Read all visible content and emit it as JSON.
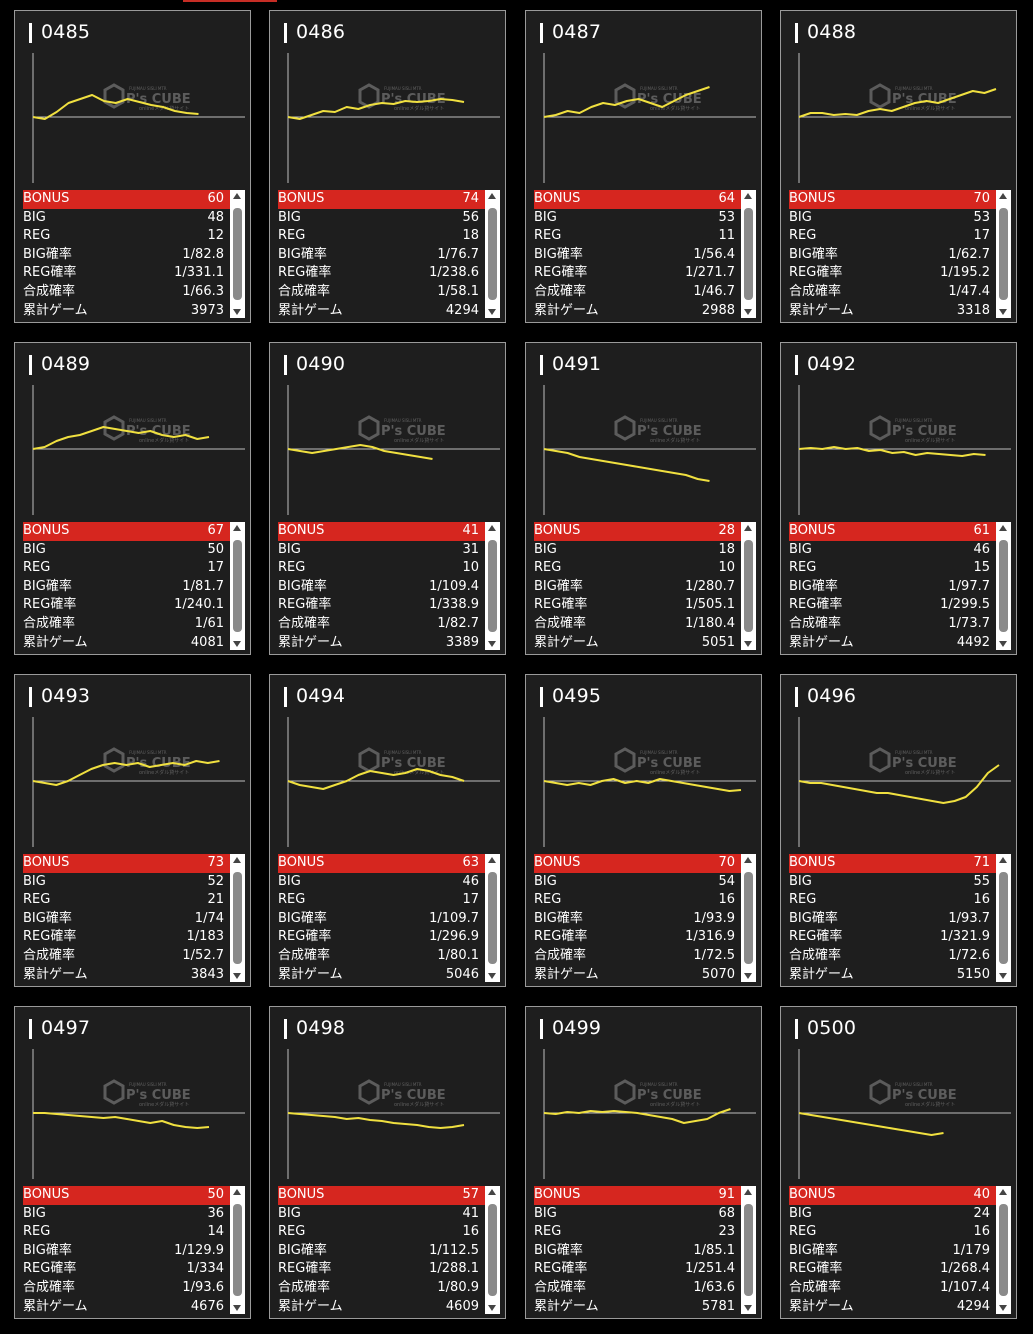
{
  "labels": {
    "bonus": "BONUS",
    "big": "BIG",
    "reg": "REG",
    "big_rate": "BIG確率",
    "reg_rate": "REG確率",
    "total_rate": "合成確率",
    "games": "累計ゲーム"
  },
  "watermark": {
    "brand": "P's CUBE",
    "line1": "FUJIMAU SISLI MTR",
    "line2": "onlineメダル貸サイト"
  },
  "colors": {
    "bonus_bar": "#d6261f",
    "graph_line": "#f0e040",
    "card_bg": "#1e1e1e"
  },
  "machines": [
    {
      "id": "0485",
      "bonus": "60",
      "big": "48",
      "reg": "12",
      "big_rate": "1/82.8",
      "reg_rate": "1/331.1",
      "total_rate": "1/66.3",
      "games": "3973",
      "trend": [
        0,
        -2,
        5,
        14,
        18,
        22,
        16,
        14,
        18,
        15,
        12,
        10,
        6,
        4,
        3
      ]
    },
    {
      "id": "0486",
      "bonus": "74",
      "big": "56",
      "reg": "18",
      "big_rate": "1/76.7",
      "reg_rate": "1/238.6",
      "total_rate": "1/58.1",
      "games": "4294",
      "trend": [
        0,
        -2,
        2,
        6,
        5,
        10,
        8,
        12,
        14,
        13,
        16,
        15,
        16,
        18,
        17,
        15
      ]
    },
    {
      "id": "0487",
      "bonus": "64",
      "big": "53",
      "reg": "11",
      "big_rate": "1/56.4",
      "reg_rate": "1/271.7",
      "total_rate": "1/46.7",
      "games": "2988",
      "trend": [
        0,
        2,
        6,
        4,
        10,
        14,
        12,
        16,
        18,
        14,
        10,
        16,
        22,
        26,
        30
      ]
    },
    {
      "id": "0488",
      "bonus": "70",
      "big": "53",
      "reg": "17",
      "big_rate": "1/62.7",
      "reg_rate": "1/195.2",
      "total_rate": "1/47.4",
      "games": "3318",
      "trend": [
        0,
        4,
        4,
        2,
        3,
        2,
        6,
        8,
        6,
        10,
        14,
        16,
        14,
        18,
        22,
        26,
        24,
        28
      ]
    },
    {
      "id": "0489",
      "bonus": "67",
      "big": "50",
      "reg": "17",
      "big_rate": "1/81.7",
      "reg_rate": "1/240.1",
      "total_rate": "1/61",
      "games": "4081",
      "trend": [
        0,
        2,
        8,
        12,
        14,
        18,
        22,
        20,
        18,
        16,
        18,
        14,
        12,
        14,
        10,
        12
      ]
    },
    {
      "id": "0490",
      "bonus": "41",
      "big": "31",
      "reg": "10",
      "big_rate": "1/109.4",
      "reg_rate": "1/338.9",
      "total_rate": "1/82.7",
      "games": "3389",
      "trend": [
        0,
        -2,
        -4,
        -2,
        0,
        2,
        4,
        2,
        -2,
        -4,
        -6,
        -8,
        -10
      ]
    },
    {
      "id": "0491",
      "bonus": "28",
      "big": "18",
      "reg": "10",
      "big_rate": "1/280.7",
      "reg_rate": "1/505.1",
      "total_rate": "1/180.4",
      "games": "5051",
      "trend": [
        0,
        -2,
        -4,
        -8,
        -10,
        -12,
        -14,
        -16,
        -18,
        -20,
        -22,
        -24,
        -26,
        -30,
        -32
      ]
    },
    {
      "id": "0492",
      "bonus": "61",
      "big": "46",
      "reg": "15",
      "big_rate": "1/97.7",
      "reg_rate": "1/299.5",
      "total_rate": "1/73.7",
      "games": "4492",
      "trend": [
        0,
        1,
        0,
        2,
        0,
        1,
        -2,
        -1,
        -4,
        -3,
        -6,
        -4,
        -5,
        -6,
        -7,
        -5,
        -6
      ]
    },
    {
      "id": "0493",
      "bonus": "73",
      "big": "52",
      "reg": "21",
      "big_rate": "1/74",
      "reg_rate": "1/183",
      "total_rate": "1/52.7",
      "games": "3843",
      "trend": [
        0,
        -2,
        -4,
        0,
        6,
        12,
        16,
        18,
        16,
        18,
        14,
        16,
        18,
        16,
        20,
        18,
        20
      ]
    },
    {
      "id": "0494",
      "bonus": "63",
      "big": "46",
      "reg": "17",
      "big_rate": "1/109.7",
      "reg_rate": "1/296.9",
      "total_rate": "1/80.1",
      "games": "5046",
      "trend": [
        0,
        -4,
        -6,
        -8,
        -4,
        0,
        6,
        10,
        8,
        6,
        8,
        12,
        10,
        6,
        4,
        0
      ]
    },
    {
      "id": "0495",
      "bonus": "70",
      "big": "54",
      "reg": "16",
      "big_rate": "1/93.9",
      "reg_rate": "1/316.9",
      "total_rate": "1/72.5",
      "games": "5070",
      "trend": [
        0,
        -2,
        -4,
        -2,
        -4,
        0,
        2,
        -2,
        0,
        -2,
        2,
        0,
        -2,
        -4,
        -6,
        -8,
        -10,
        -9
      ]
    },
    {
      "id": "0496",
      "bonus": "71",
      "big": "55",
      "reg": "16",
      "big_rate": "1/93.7",
      "reg_rate": "1/321.9",
      "total_rate": "1/72.6",
      "games": "5150",
      "trend": [
        0,
        -2,
        -2,
        -4,
        -6,
        -8,
        -10,
        -12,
        -12,
        -14,
        -16,
        -18,
        -20,
        -22,
        -20,
        -16,
        -6,
        8,
        16
      ]
    },
    {
      "id": "0497",
      "bonus": "50",
      "big": "36",
      "reg": "14",
      "big_rate": "1/129.9",
      "reg_rate": "1/334",
      "total_rate": "1/93.6",
      "games": "4676",
      "trend": [
        0,
        0,
        -1,
        -2,
        -3,
        -4,
        -5,
        -4,
        -6,
        -8,
        -10,
        -8,
        -12,
        -14,
        -15,
        -14
      ]
    },
    {
      "id": "0498",
      "bonus": "57",
      "big": "41",
      "reg": "16",
      "big_rate": "1/112.5",
      "reg_rate": "1/288.1",
      "total_rate": "1/80.9",
      "games": "4609",
      "trend": [
        0,
        -1,
        -2,
        -3,
        -4,
        -6,
        -5,
        -7,
        -8,
        -10,
        -11,
        -12,
        -14,
        -15,
        -14,
        -12
      ]
    },
    {
      "id": "0499",
      "bonus": "91",
      "big": "68",
      "reg": "23",
      "big_rate": "1/85.1",
      "reg_rate": "1/251.4",
      "total_rate": "1/63.6",
      "games": "5781",
      "trend": [
        0,
        -1,
        1,
        0,
        2,
        1,
        2,
        1,
        0,
        -2,
        -4,
        -6,
        -10,
        -8,
        -6,
        0,
        4
      ]
    },
    {
      "id": "0500",
      "bonus": "40",
      "big": "24",
      "reg": "16",
      "big_rate": "1/179",
      "reg_rate": "1/268.4",
      "total_rate": "1/107.4",
      "games": "4294",
      "trend": [
        0,
        -2,
        -4,
        -6,
        -8,
        -10,
        -12,
        -14,
        -16,
        -18,
        -20,
        -22,
        -20
      ]
    }
  ]
}
